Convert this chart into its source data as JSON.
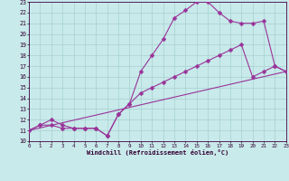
{
  "xlabel": "Windchill (Refroidissement éolien,°C)",
  "xlim": [
    0,
    23
  ],
  "ylim": [
    10,
    23
  ],
  "xticks": [
    0,
    1,
    2,
    3,
    4,
    5,
    6,
    7,
    8,
    9,
    10,
    11,
    12,
    13,
    14,
    15,
    16,
    17,
    18,
    19,
    20,
    21,
    22,
    23
  ],
  "yticks": [
    10,
    11,
    12,
    13,
    14,
    15,
    16,
    17,
    18,
    19,
    20,
    21,
    22,
    23
  ],
  "bg_color": "#c8eaea",
  "grid_color": "#a8d0d0",
  "line_color": "#993399",
  "curve1_x": [
    0,
    1,
    2,
    3,
    4,
    5,
    6,
    7,
    8,
    9,
    10,
    11,
    12,
    13,
    14,
    15,
    16,
    17,
    18,
    19,
    20,
    21,
    22,
    23
  ],
  "curve1_y": [
    11,
    11.5,
    11.5,
    11.2,
    11.2,
    11.2,
    11.2,
    10.5,
    12.5,
    13.5,
    16.5,
    18.0,
    19.5,
    21.5,
    22.2,
    23.0,
    23.0,
    22.0,
    21.2,
    21.0,
    21.0,
    21.2,
    17.0,
    16.5
  ],
  "curve2_x": [
    0,
    1,
    2,
    3,
    4,
    5,
    6,
    7,
    8,
    9,
    10,
    11,
    12,
    13,
    14,
    15,
    16,
    17,
    18,
    19,
    20,
    21,
    22,
    23
  ],
  "curve2_y": [
    11,
    11.5,
    12.0,
    11.5,
    11.2,
    11.2,
    11.2,
    10.5,
    12.5,
    13.5,
    14.5,
    15.0,
    15.5,
    16.0,
    16.5,
    17.0,
    17.5,
    18.0,
    18.5,
    19.0,
    16.0,
    16.5,
    17.0,
    16.5
  ],
  "curve3_x": [
    0,
    23
  ],
  "curve3_y": [
    11,
    16.5
  ],
  "marker": "D",
  "markersize": 2.5
}
